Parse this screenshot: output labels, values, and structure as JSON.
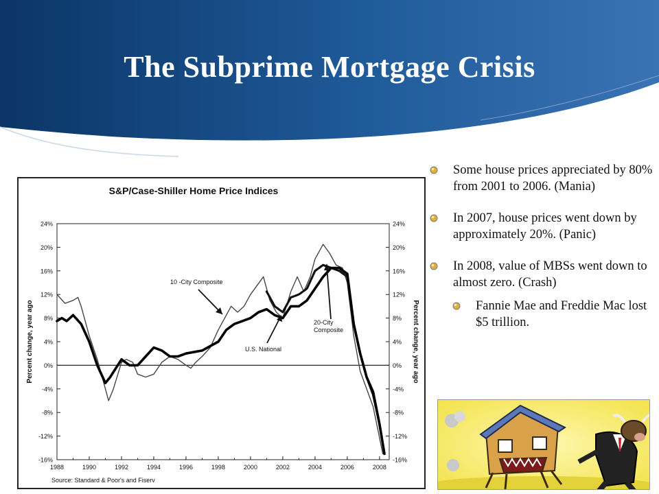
{
  "slide": {
    "title": "The Subprime Mortgage Crisis",
    "colors": {
      "header_dark": "#0d3a6e",
      "header_light": "#4f86c2"
    }
  },
  "bullets": [
    {
      "text": "Some house prices appreciated by 80% from 2001 to 2006. (Mania)"
    },
    {
      "text": "In 2007, house prices went down by approximately 20%. (Panic)"
    },
    {
      "text": "In 2008, value of MBSs went down to almost zero. (Crash)"
    }
  ],
  "sub_bullets": [
    {
      "text": "Fannie Mae and Freddie Mac lost $5 trillion."
    }
  ],
  "cartoon": {
    "icon": "house-chasing-bull-cartoon-icon"
  },
  "chart_data": {
    "type": "line",
    "title": "S&P/Case-Shiller Home Price Indices",
    "ylabel_left": "Percent change, year ago",
    "ylabel_right": "Percent change, year ago",
    "source": "Source: Standard & Poor's and Fiserv",
    "xlim": [
      1988,
      2008.6
    ],
    "ylim": [
      -16,
      24
    ],
    "x_ticks": [
      "1988",
      "1990",
      "1992",
      "1994",
      "1996",
      "1998",
      "2000",
      "2002",
      "2004",
      "2006",
      "2008"
    ],
    "y_ticks": [
      "24%",
      "20%",
      "16%",
      "12%",
      "8%",
      "4%",
      "0%",
      "-4%",
      "-8%",
      "-12%",
      "-16%"
    ],
    "grid": false,
    "annotations": [
      {
        "text": "10 -City Composite"
      },
      {
        "text": "20-City"
      },
      {
        "text": "Composite"
      },
      {
        "text": "U.S. National"
      }
    ],
    "series": [
      {
        "name": "10 -City Composite",
        "points": [
          [
            1988,
            12
          ],
          [
            1988.5,
            10.5
          ],
          [
            1989,
            11
          ],
          [
            1989.3,
            11.5
          ],
          [
            1989.5,
            10
          ],
          [
            1990,
            5
          ],
          [
            1990.5,
            1
          ],
          [
            1990.8,
            -2
          ],
          [
            1991.2,
            -6
          ],
          [
            1991.5,
            -4
          ],
          [
            1992,
            0.5
          ],
          [
            1992.3,
            1
          ],
          [
            1992.7,
            0.5
          ],
          [
            1993,
            -1.5
          ],
          [
            1993.5,
            -2
          ],
          [
            1994,
            -1.5
          ],
          [
            1994.5,
            0.5
          ],
          [
            1995,
            1.5
          ],
          [
            1995.5,
            1
          ],
          [
            1996,
            0
          ],
          [
            1996.3,
            -0.5
          ],
          [
            1996.6,
            0.5
          ],
          [
            1997,
            1.5
          ],
          [
            1997.5,
            3
          ],
          [
            1998,
            6
          ],
          [
            1998.5,
            8.5
          ],
          [
            1998.8,
            10
          ],
          [
            1999.2,
            9
          ],
          [
            1999.6,
            10
          ],
          [
            2000,
            12
          ],
          [
            2000.4,
            13.5
          ],
          [
            2000.8,
            15
          ],
          [
            2001.2,
            11
          ],
          [
            2001.6,
            9
          ],
          [
            2002,
            8
          ],
          [
            2002.5,
            12.5
          ],
          [
            2002.9,
            15
          ],
          [
            2003.3,
            12.5
          ],
          [
            2003.7,
            15
          ],
          [
            2004,
            18
          ],
          [
            2004.5,
            20.5
          ],
          [
            2004.9,
            19
          ],
          [
            2005.3,
            17
          ],
          [
            2005.7,
            16.5
          ],
          [
            2006,
            14
          ],
          [
            2006.4,
            5
          ],
          [
            2006.8,
            -1
          ],
          [
            2007.2,
            -4
          ],
          [
            2007.6,
            -7
          ],
          [
            2007.9,
            -11
          ],
          [
            2008.2,
            -15
          ]
        ]
      },
      {
        "name": "20-City Composite",
        "points": [
          [
            2001,
            12.5
          ],
          [
            2001.5,
            10
          ],
          [
            2002,
            9
          ],
          [
            2002.5,
            11.5
          ],
          [
            2003,
            12
          ],
          [
            2003.5,
            13
          ],
          [
            2004,
            16
          ],
          [
            2004.5,
            17
          ],
          [
            2005,
            16.5
          ],
          [
            2005.5,
            16
          ],
          [
            2006,
            15
          ],
          [
            2006.4,
            7
          ],
          [
            2006.8,
            2
          ],
          [
            2007.2,
            -2
          ],
          [
            2007.6,
            -5
          ],
          [
            2008,
            -10
          ],
          [
            2008.3,
            -15
          ]
        ]
      },
      {
        "name": "U.S. National",
        "points": [
          [
            1988,
            7.5
          ],
          [
            1988.3,
            8
          ],
          [
            1988.6,
            7.5
          ],
          [
            1989,
            8.5
          ],
          [
            1989.5,
            7
          ],
          [
            1990,
            4
          ],
          [
            1990.5,
            0
          ],
          [
            1991,
            -3
          ],
          [
            1991.3,
            -2
          ],
          [
            1992,
            1
          ],
          [
            1992.5,
            0
          ],
          [
            1993,
            0
          ],
          [
            1993.5,
            1.5
          ],
          [
            1994,
            3
          ],
          [
            1994.5,
            2.5
          ],
          [
            1995,
            1.5
          ],
          [
            1995.5,
            1.5
          ],
          [
            1996,
            2
          ],
          [
            1997,
            2.5
          ],
          [
            1998,
            4
          ],
          [
            1998.5,
            6
          ],
          [
            1999,
            7
          ],
          [
            1999.5,
            7.5
          ],
          [
            2000,
            8
          ],
          [
            2000.5,
            9
          ],
          [
            2001,
            9.5
          ],
          [
            2001.5,
            8.5
          ],
          [
            2002,
            8
          ],
          [
            2002.5,
            10
          ],
          [
            2003,
            10
          ],
          [
            2003.5,
            11
          ],
          [
            2004,
            13
          ],
          [
            2004.5,
            15
          ],
          [
            2005,
            16.5
          ],
          [
            2005.5,
            16.5
          ],
          [
            2006,
            15.5
          ],
          [
            2006.4,
            7
          ],
          [
            2006.8,
            2
          ],
          [
            2007.2,
            -2
          ],
          [
            2007.6,
            -4.5
          ],
          [
            2008,
            -10
          ],
          [
            2008.3,
            -15
          ]
        ]
      }
    ]
  }
}
